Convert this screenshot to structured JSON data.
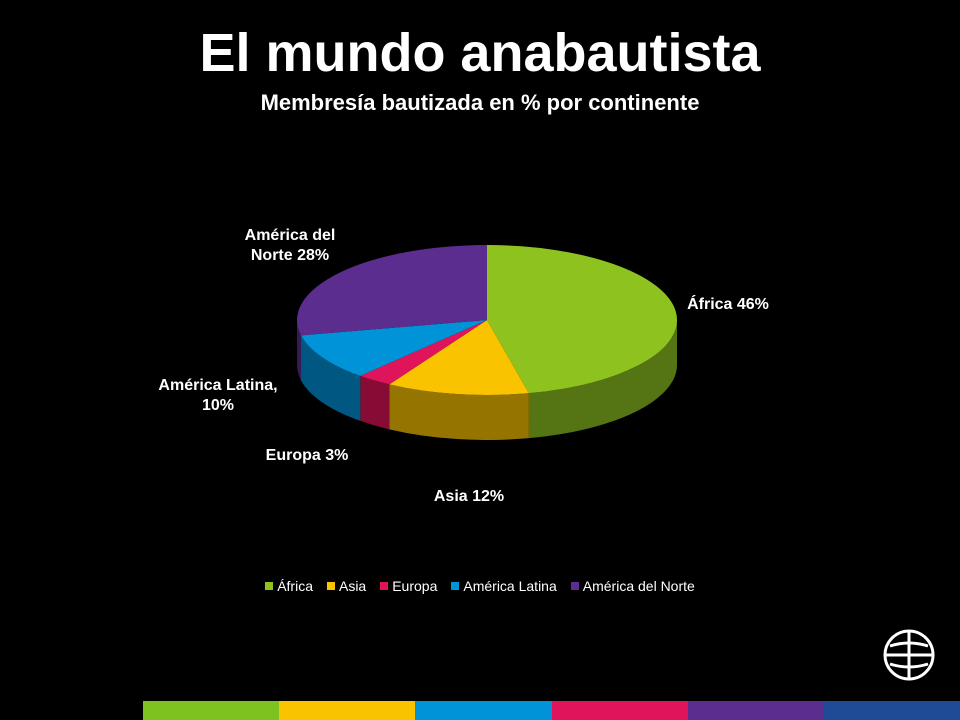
{
  "chart_data": {
    "type": "pie",
    "title": "El mundo anabautista",
    "subtitle": "Membresía bautizada en % por continente",
    "categories": [
      "África",
      "Asia",
      "Europa",
      "América Latina",
      "América del Norte"
    ],
    "values": [
      46,
      12,
      3,
      10,
      28
    ],
    "value_labels": [
      "África 46%",
      "Asia 12%",
      "Europa 3%",
      "América Latina,\n10%",
      "América del\nNorte 28%"
    ],
    "colors": [
      "#8dc21f",
      "#f9c300",
      "#e0145a",
      "#0093d8",
      "#5b2d8e"
    ],
    "legend": "bottom"
  }
}
